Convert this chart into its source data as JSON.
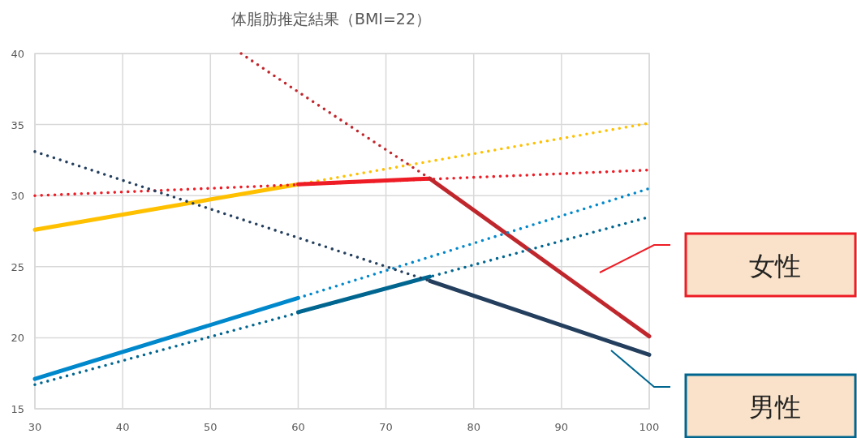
{
  "chart_data": {
    "type": "line",
    "title": "体脂肪推定結果（BMI=22）",
    "xlim": [
      30,
      100
    ],
    "ylim": [
      15,
      40
    ],
    "xticks": [
      30,
      40,
      50,
      60,
      70,
      80,
      90,
      100
    ],
    "yticks": [
      15,
      20,
      25,
      30,
      35,
      40
    ],
    "grid": true,
    "marker": "none",
    "series": [
      {
        "color": "#ffc000",
        "line_style": "solid",
        "x": [
          30,
          60
        ],
        "values": [
          27.6,
          30.8
        ]
      },
      {
        "color": "#ffc000",
        "line_style": "dotted",
        "x": [
          60,
          100
        ],
        "values": [
          30.8,
          35.1
        ]
      },
      {
        "color": "#ee1c25",
        "line_style": "dotted",
        "x": [
          30,
          100
        ],
        "values": [
          30.0,
          31.8
        ]
      },
      {
        "color": "#ee1c25",
        "line_style": "solid",
        "x": [
          60,
          75
        ],
        "values": [
          30.8,
          31.2
        ]
      },
      {
        "color": "#c0272d",
        "line_style": "dotted",
        "x": [
          53.5,
          60,
          75
        ],
        "values": [
          40,
          37.3,
          31.2
        ]
      },
      {
        "color": "#c0272d",
        "line_style": "solid",
        "x": [
          75,
          100
        ],
        "values": [
          31.2,
          20.1
        ]
      },
      {
        "color": "#0088cc",
        "line_style": "solid",
        "x": [
          30,
          60
        ],
        "values": [
          17.1,
          22.8
        ]
      },
      {
        "color": "#0088cc",
        "line_style": "dotted",
        "x": [
          60,
          100
        ],
        "values": [
          22.8,
          30.5
        ]
      },
      {
        "color": "#006690",
        "line_style": "dotted",
        "x": [
          30,
          100
        ],
        "values": [
          16.7,
          28.5
        ]
      },
      {
        "color": "#006690",
        "line_style": "solid",
        "x": [
          60,
          75
        ],
        "values": [
          21.8,
          24.3
        ]
      },
      {
        "color": "#243f5e",
        "line_style": "dotted",
        "x": [
          30,
          75
        ],
        "values": [
          33.1,
          24.0
        ]
      },
      {
        "color": "#243f5e",
        "line_style": "solid",
        "x": [
          75,
          100
        ],
        "values": [
          24.0,
          18.8
        ]
      }
    ],
    "annotations": [
      "女性",
      "男性"
    ]
  }
}
